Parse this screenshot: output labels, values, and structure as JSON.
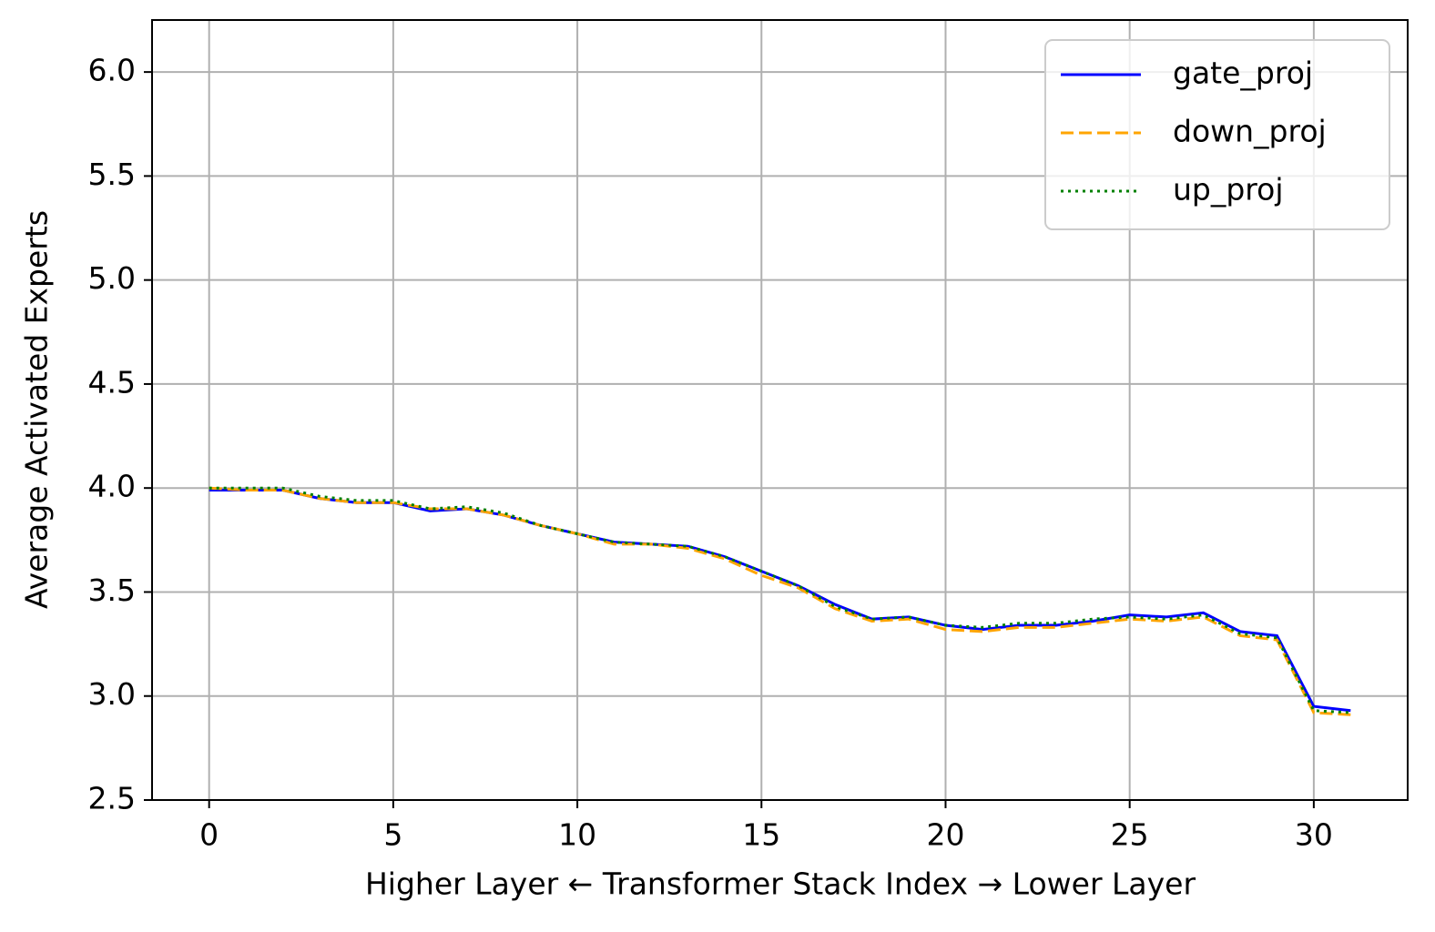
{
  "chart_data": {
    "type": "line",
    "xlabel": "Higher Layer ← Transformer Stack Index → Lower Layer",
    "ylabel": "Average Activated Experts",
    "x": [
      0,
      1,
      2,
      3,
      4,
      5,
      6,
      7,
      8,
      9,
      10,
      11,
      12,
      13,
      14,
      15,
      16,
      17,
      18,
      19,
      20,
      21,
      22,
      23,
      24,
      25,
      26,
      27,
      28,
      29,
      30,
      31
    ],
    "series": [
      {
        "name": "gate_proj",
        "color": "#0000ff",
        "style": "solid",
        "values": [
          3.99,
          3.99,
          3.99,
          3.95,
          3.93,
          3.93,
          3.89,
          3.9,
          3.87,
          3.82,
          3.78,
          3.74,
          3.73,
          3.72,
          3.67,
          3.6,
          3.53,
          3.44,
          3.37,
          3.38,
          3.34,
          3.32,
          3.34,
          3.34,
          3.36,
          3.39,
          3.38,
          3.4,
          3.31,
          3.29,
          2.95,
          2.93
        ]
      },
      {
        "name": "down_proj",
        "color": "#ffa500",
        "style": "dashed",
        "values": [
          4.0,
          3.99,
          3.99,
          3.95,
          3.93,
          3.93,
          3.9,
          3.9,
          3.87,
          3.82,
          3.78,
          3.73,
          3.73,
          3.71,
          3.66,
          3.58,
          3.52,
          3.42,
          3.36,
          3.37,
          3.32,
          3.31,
          3.33,
          3.33,
          3.35,
          3.37,
          3.36,
          3.38,
          3.29,
          3.27,
          2.92,
          2.91
        ]
      },
      {
        "name": "up_proj",
        "color": "#008000",
        "style": "dotted",
        "values": [
          4.0,
          4.0,
          4.0,
          3.96,
          3.94,
          3.94,
          3.9,
          3.91,
          3.88,
          3.82,
          3.78,
          3.74,
          3.73,
          3.72,
          3.67,
          3.6,
          3.53,
          3.43,
          3.37,
          3.38,
          3.34,
          3.33,
          3.35,
          3.35,
          3.37,
          3.38,
          3.37,
          3.39,
          3.3,
          3.28,
          2.93,
          2.92
        ]
      }
    ],
    "xlim": [
      -1.55,
      32.55
    ],
    "xticks": [
      0,
      5,
      10,
      15,
      20,
      25,
      30
    ],
    "ylim": [
      2.5,
      6.25
    ],
    "yticks": [
      2.5,
      {
        "value": 3.0,
        "label": "3.0"
      },
      3.5,
      {
        "value": 4.0,
        "label": "4.0"
      },
      4.5,
      {
        "value": 5.0,
        "label": "5.0"
      },
      5.5,
      {
        "value": 6.0,
        "label": "6.0"
      }
    ],
    "grid": true,
    "legend": "upper right"
  }
}
